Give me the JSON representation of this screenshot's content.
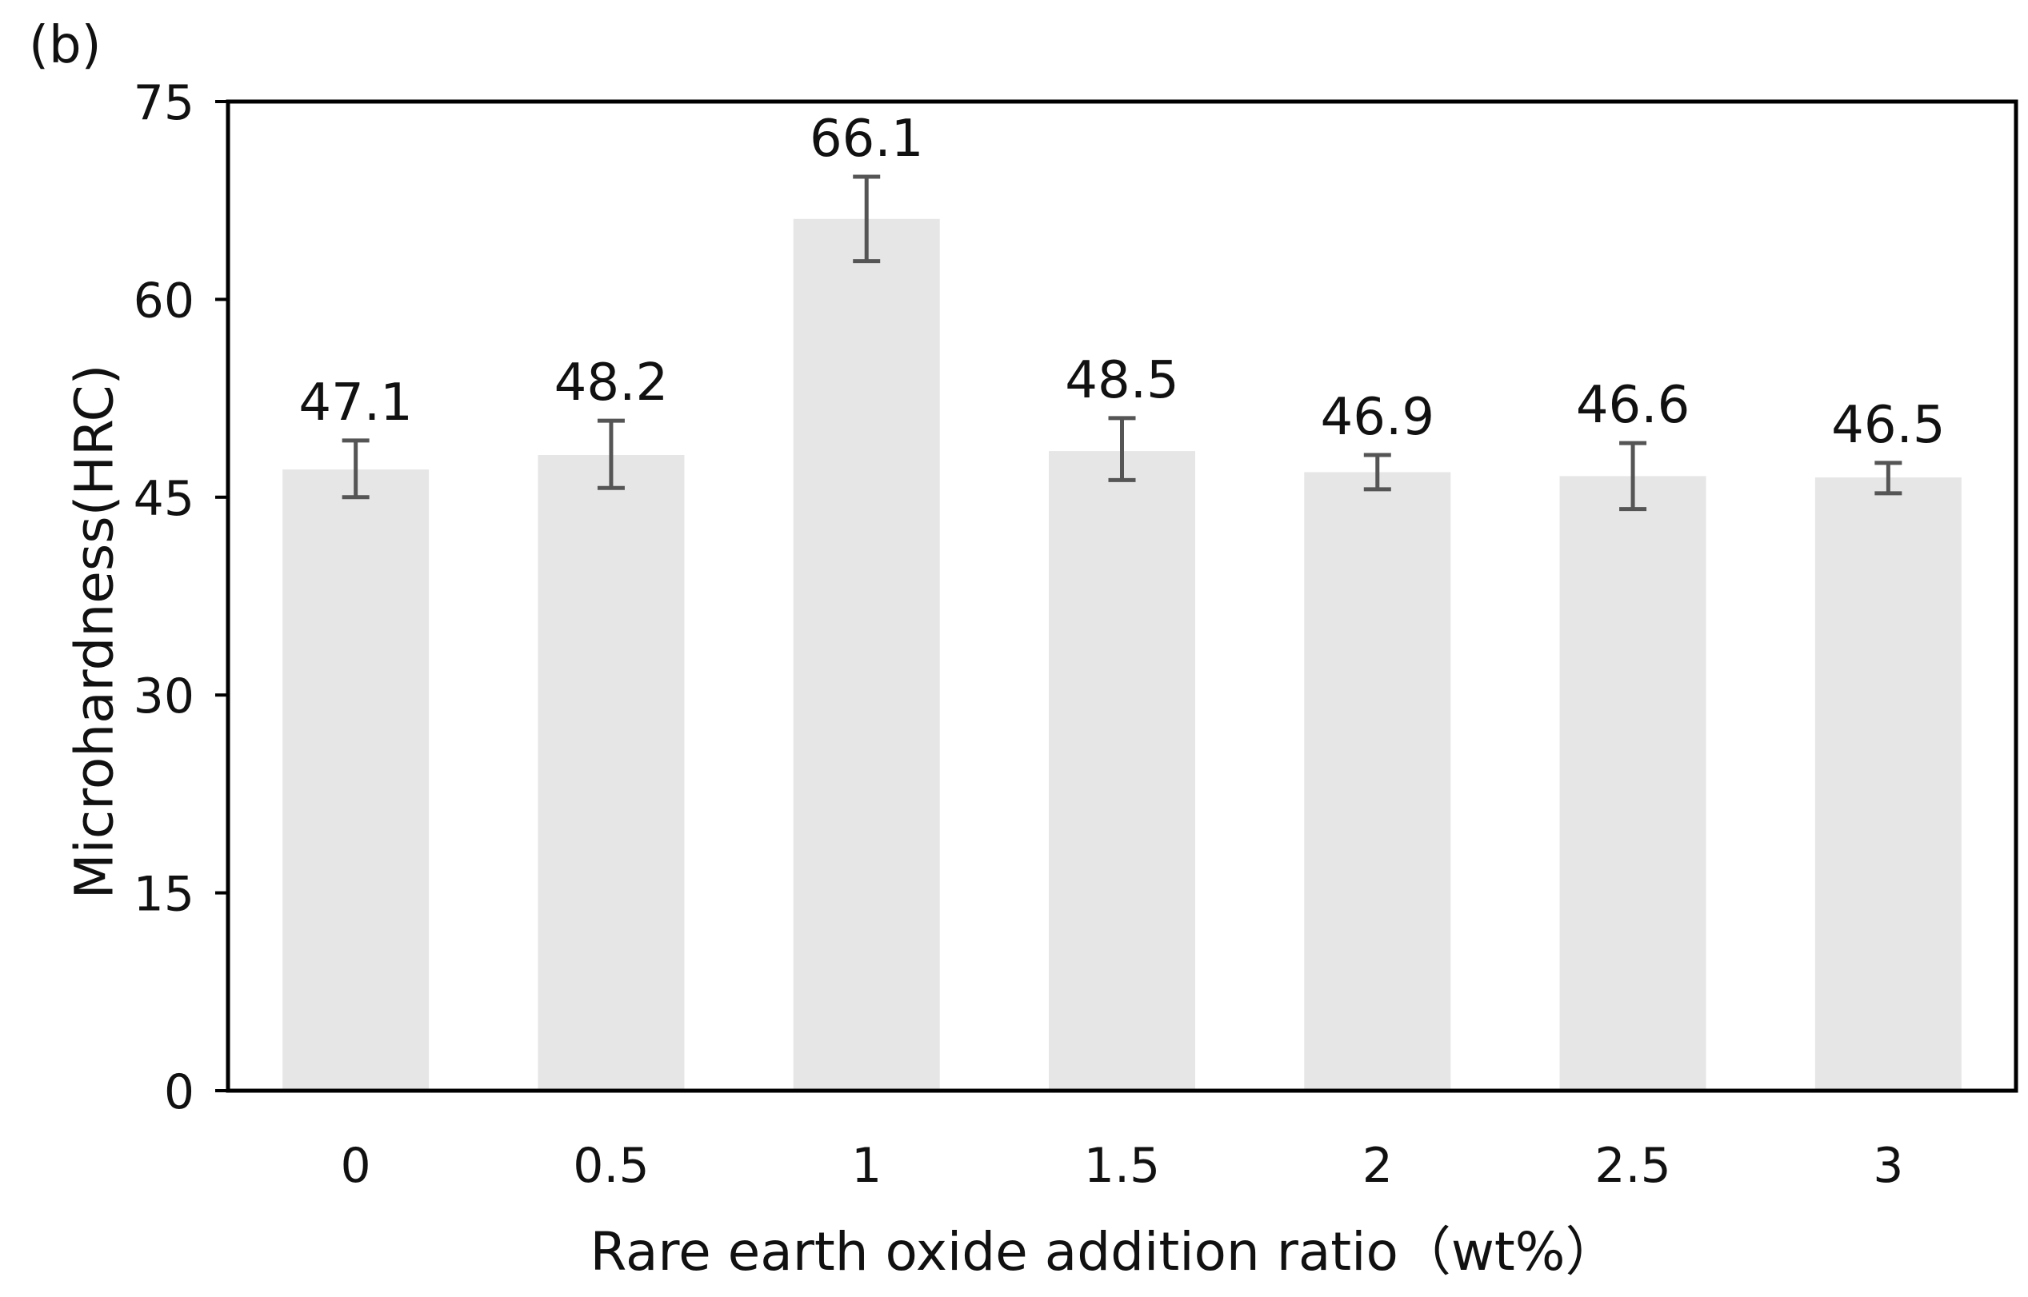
{
  "panel_label": "(b)",
  "chart_data": {
    "type": "bar",
    "categories": [
      "0",
      "0.5",
      "1",
      "1.5",
      "2",
      "2.5",
      "3"
    ],
    "values": [
      47.1,
      48.2,
      66.1,
      48.5,
      46.9,
      46.6,
      46.5
    ],
    "value_labels": [
      "47.1",
      "48.2",
      "66.1",
      "48.5",
      "46.9",
      "46.6",
      "46.5"
    ],
    "error_bars": [
      {
        "low": 45.0,
        "high": 49.3
      },
      {
        "low": 45.7,
        "high": 50.8
      },
      {
        "low": 62.9,
        "high": 69.3
      },
      {
        "low": 46.3,
        "high": 51.0
      },
      {
        "low": 45.6,
        "high": 48.2
      },
      {
        "low": 44.1,
        "high": 49.1
      },
      {
        "low": 45.3,
        "high": 47.6
      }
    ],
    "xlabel": "Rare earth oxide addition ratio（wt%）",
    "ylabel": "Microhardness(HRC)",
    "ylim": [
      0,
      75
    ],
    "yticks": [
      0,
      15,
      30,
      45,
      60,
      75
    ],
    "grid": false,
    "colors": {
      "bar": "#e6e6e6",
      "error": "#555555",
      "frame": "#000000"
    }
  }
}
